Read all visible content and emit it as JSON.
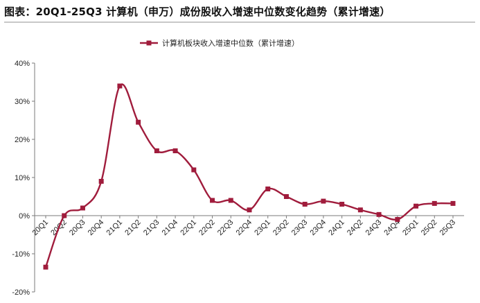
{
  "figure": {
    "title": "图表：20Q1-25Q3 计算机（申万）成份股收入增速中位数变化趋势（累计增速）"
  },
  "colors": {
    "series": "#a01c3c",
    "axis": "#7a7a7a",
    "text": "#222222"
  },
  "chart_data": {
    "type": "line",
    "title": "",
    "xlabel": "",
    "ylabel": "",
    "categories": [
      "20Q1",
      "20Q2",
      "20Q3",
      "20Q4",
      "21Q1",
      "21Q2",
      "21Q3",
      "21Q4",
      "22Q1",
      "22Q2",
      "22Q3",
      "22Q4",
      "23Q1",
      "23Q2",
      "23Q3",
      "23Q4",
      "24Q1",
      "24Q2",
      "24Q3",
      "24Q4",
      "25Q1",
      "25Q2",
      "25Q3"
    ],
    "ylim": [
      -20,
      40
    ],
    "yticks": [
      -20,
      -10,
      0,
      10,
      20,
      30,
      40
    ],
    "ytick_labels": [
      "-20%",
      "-10%",
      "0%",
      "10%",
      "20%",
      "30%",
      "40%"
    ],
    "grid": false,
    "legend_position": "top-center",
    "smooth": true,
    "marker": "square",
    "series": [
      {
        "name": "计算机板块收入增速中位数（累计增速）",
        "values": [
          -13.5,
          0.0,
          2.0,
          9.0,
          34.0,
          24.5,
          17.0,
          17.0,
          12.0,
          4.0,
          4.0,
          1.5,
          7.0,
          5.0,
          3.0,
          3.8,
          3.0,
          1.5,
          0.3,
          -1.0,
          2.5,
          3.2,
          3.2
        ]
      }
    ]
  }
}
